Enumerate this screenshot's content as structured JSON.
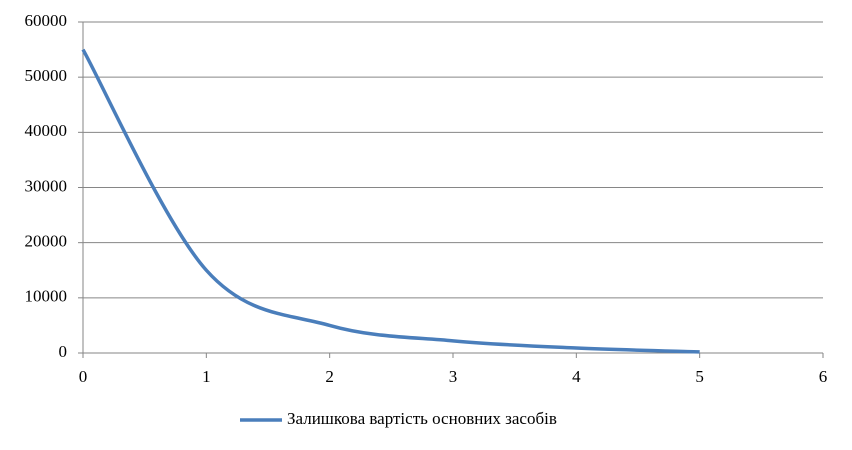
{
  "chart_data": {
    "type": "line",
    "x": [
      0,
      1,
      2,
      3,
      4,
      5
    ],
    "series": [
      {
        "name": "Залишкова вартість основних засобів",
        "color": "#4a7ebb",
        "values": [
          55000,
          15000,
          5000,
          2200,
          900,
          200
        ]
      }
    ],
    "xlim": [
      0,
      6
    ],
    "xticks": [
      0,
      1,
      2,
      3,
      4,
      5,
      6
    ],
    "ylim": [
      0,
      60000
    ],
    "yticks": [
      0,
      10000,
      20000,
      30000,
      40000,
      50000,
      60000
    ],
    "grid": true,
    "smooth": true,
    "legend": "bottom"
  }
}
